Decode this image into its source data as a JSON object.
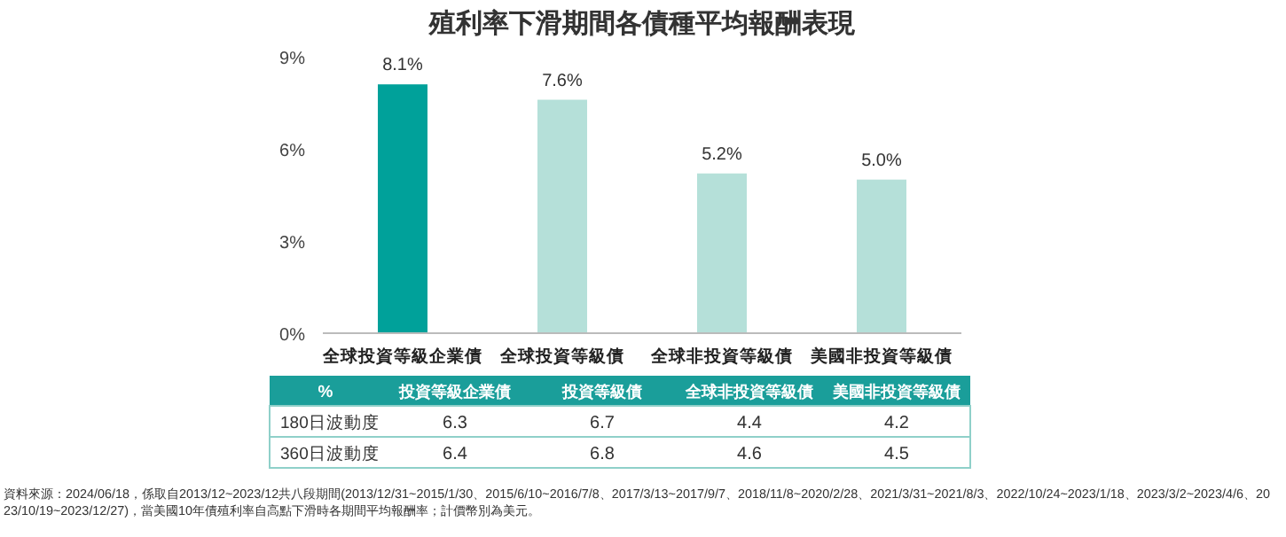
{
  "chart_data": [
    {
      "type": "bar",
      "title": "殖利率下滑期間各債種平均報酬表現",
      "categories": [
        "全球投資等級企業債",
        "全球投資等級債",
        "全球非投資等級債",
        "美國非投資等級債"
      ],
      "values": [
        8.1,
        7.6,
        5.2,
        5.0
      ],
      "colors": [
        "#00a19a",
        "#b5e0d9",
        "#b5e0d9",
        "#b5e0d9"
      ],
      "value_labels": [
        "8.1%",
        "7.6%",
        "5.2%",
        "5.0%"
      ],
      "ylim": [
        0,
        9
      ],
      "yticks": [
        {
          "value": 0,
          "label": "0%"
        },
        {
          "value": 3,
          "label": "3%"
        },
        {
          "value": 6,
          "label": "6%"
        },
        {
          "value": 9,
          "label": "9%"
        }
      ],
      "grid": false,
      "annotations": [
        "資料來源：2024/06/18，係取自2013/12~2023/12共八段期間(2013/12/31~2015/1/30、2015/6/10~2016/7/8、2017/3/13~2017/9/7、2018/11/8~2020/2/28、2021/3/31~2021/8/3、2022/10/24~2023/1/18、2023/3/2~2023/4/6、2023/10/19~2023/12/27)，當美國10年債殖利率自高點下滑時各期間平均報酬率；計價幣別為美元。"
      ]
    },
    {
      "type": "heatmap",
      "title": "%",
      "categories": [
        "投資等級企業債",
        "投資等級債",
        "全球非投資等級債",
        "美國非投資等級債"
      ],
      "y_categories": [
        "180日波動度",
        "360日波動度"
      ],
      "cells": [
        [
          6.3,
          6.7,
          4.4,
          4.2
        ],
        [
          6.4,
          6.8,
          4.6,
          4.5
        ]
      ],
      "data_labels": true
    }
  ]
}
